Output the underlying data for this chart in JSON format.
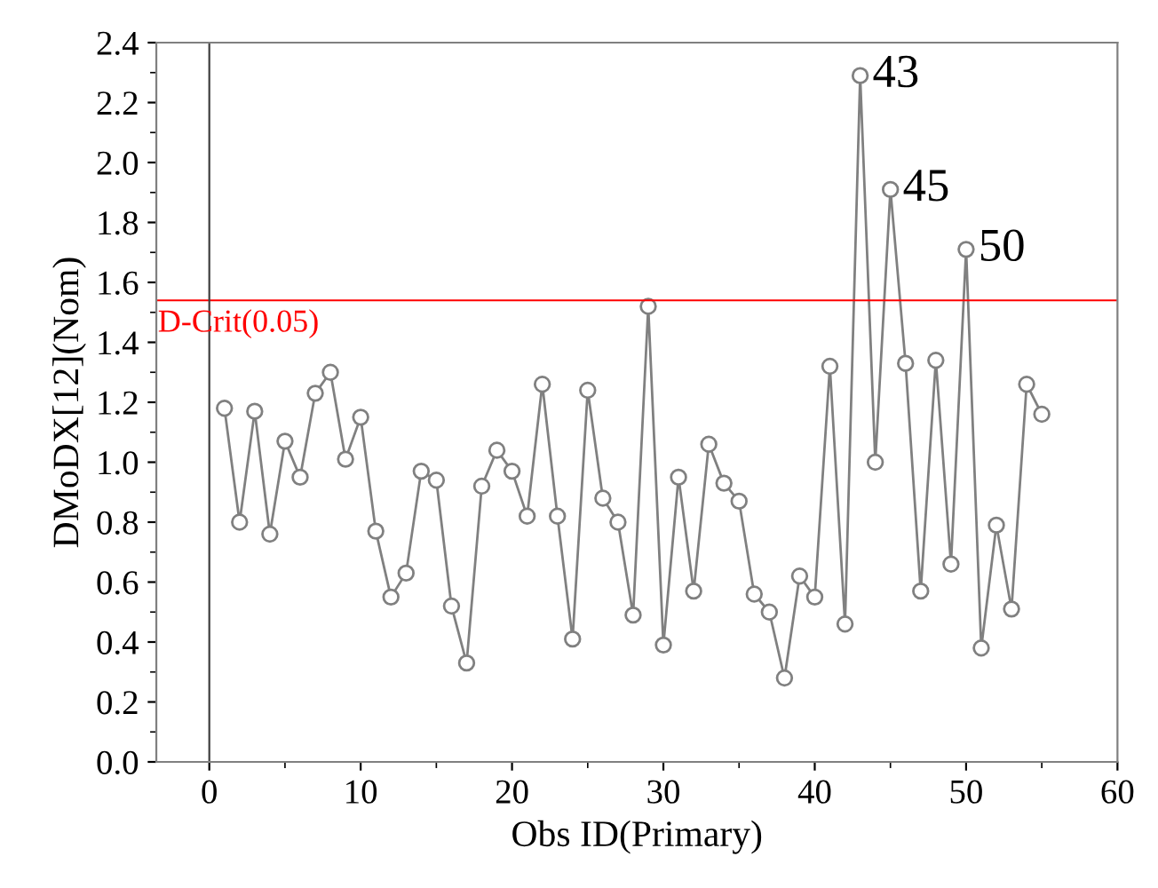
{
  "chart_data": {
    "type": "line",
    "xlabel": "Obs ID(Primary)",
    "ylabel": "DMoDX[12](Nom)",
    "x": [
      1,
      2,
      3,
      4,
      5,
      6,
      7,
      8,
      9,
      10,
      11,
      12,
      13,
      14,
      15,
      16,
      17,
      18,
      19,
      20,
      21,
      22,
      23,
      24,
      25,
      26,
      27,
      28,
      29,
      30,
      31,
      32,
      33,
      34,
      35,
      36,
      37,
      38,
      39,
      40,
      41,
      42,
      43,
      44,
      45,
      46,
      47,
      48,
      49,
      50,
      51,
      52,
      53,
      54,
      55
    ],
    "series": [
      {
        "color": "#808080",
        "values": [
          1.18,
          0.8,
          1.17,
          0.76,
          1.07,
          0.95,
          1.23,
          1.3,
          1.01,
          1.15,
          0.77,
          0.55,
          0.63,
          0.97,
          0.94,
          0.52,
          0.33,
          0.92,
          1.04,
          0.97,
          0.82,
          1.26,
          0.82,
          0.41,
          1.24,
          0.88,
          0.8,
          0.49,
          1.52,
          0.39,
          0.95,
          0.57,
          1.06,
          0.93,
          0.87,
          0.56,
          0.5,
          0.28,
          0.62,
          0.55,
          1.32,
          0.46,
          2.29,
          1.0,
          1.91,
          1.33,
          0.57,
          1.34,
          0.66,
          1.71,
          0.38,
          0.79,
          0.51,
          1.26,
          1.16
        ]
      }
    ],
    "marker": "circle",
    "line_style": "solid",
    "grid": false,
    "legend": false,
    "xlim": [
      -3.5,
      60
    ],
    "xticks": [
      0,
      10,
      20,
      30,
      40,
      50,
      60
    ],
    "ylim": [
      0,
      2.4
    ],
    "yticks": [
      {
        "value": 0,
        "label": "0.0"
      },
      0.2,
      0.4,
      0.6,
      0.8,
      {
        "value": 1,
        "label": "1.0"
      },
      1.2,
      1.4,
      1.6,
      1.8,
      {
        "value": 2,
        "label": "2.0"
      },
      2.2,
      2.4
    ],
    "ref_lines": [
      {
        "axis": "y",
        "value": 1.54,
        "label": "D-Crit(0.05)",
        "color": "#ff0000"
      },
      {
        "axis": "x",
        "value": 0,
        "label": null,
        "color": "#404040"
      }
    ],
    "annotations": [
      {
        "text": "43",
        "x": 43,
        "y": 2.29
      },
      {
        "text": "45",
        "x": 45,
        "y": 1.91
      },
      {
        "text": "50",
        "x": 50,
        "y": 1.71
      }
    ]
  }
}
